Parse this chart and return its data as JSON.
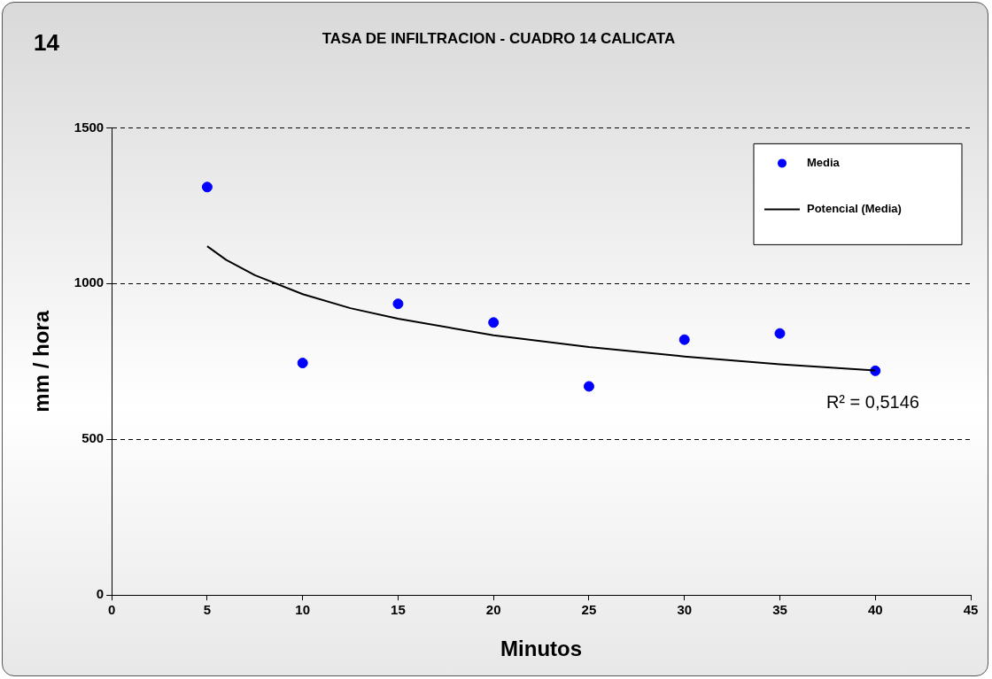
{
  "chart_data": {
    "type": "scatter",
    "title": "TASA DE INFILTRACION - CUADRO 14 CALICATA",
    "xlabel": "Minutos",
    "ylabel": "mm / hora",
    "annotations": [
      "14",
      "R² = 0,5146"
    ],
    "xlim": [
      0,
      45
    ],
    "xticks": [
      0,
      5,
      10,
      15,
      20,
      25,
      30,
      35,
      40,
      45
    ],
    "ylim": [
      0,
      1500
    ],
    "yticks": [
      0,
      500,
      1000,
      1500
    ],
    "grid": "y",
    "legend": "top right",
    "series": [
      {
        "name": "Media",
        "type": "scatter",
        "color": "#0000ff",
        "marker": "circle",
        "x": [
          5,
          10,
          15,
          20,
          25,
          30,
          35,
          40
        ],
        "values": [
          1310,
          745,
          935,
          875,
          670,
          820,
          840,
          720
        ]
      },
      {
        "name": "Potencial (Media)",
        "type": "line",
        "color": "#000000",
        "marker": "none",
        "line_style": "solid",
        "x": [
          5,
          6,
          7.5,
          10,
          12.5,
          15,
          20,
          25,
          30,
          35,
          40
        ],
        "values": [
          1120,
          1076,
          1027,
          966,
          921,
          887,
          834,
          796,
          766,
          741,
          721
        ]
      }
    ]
  }
}
